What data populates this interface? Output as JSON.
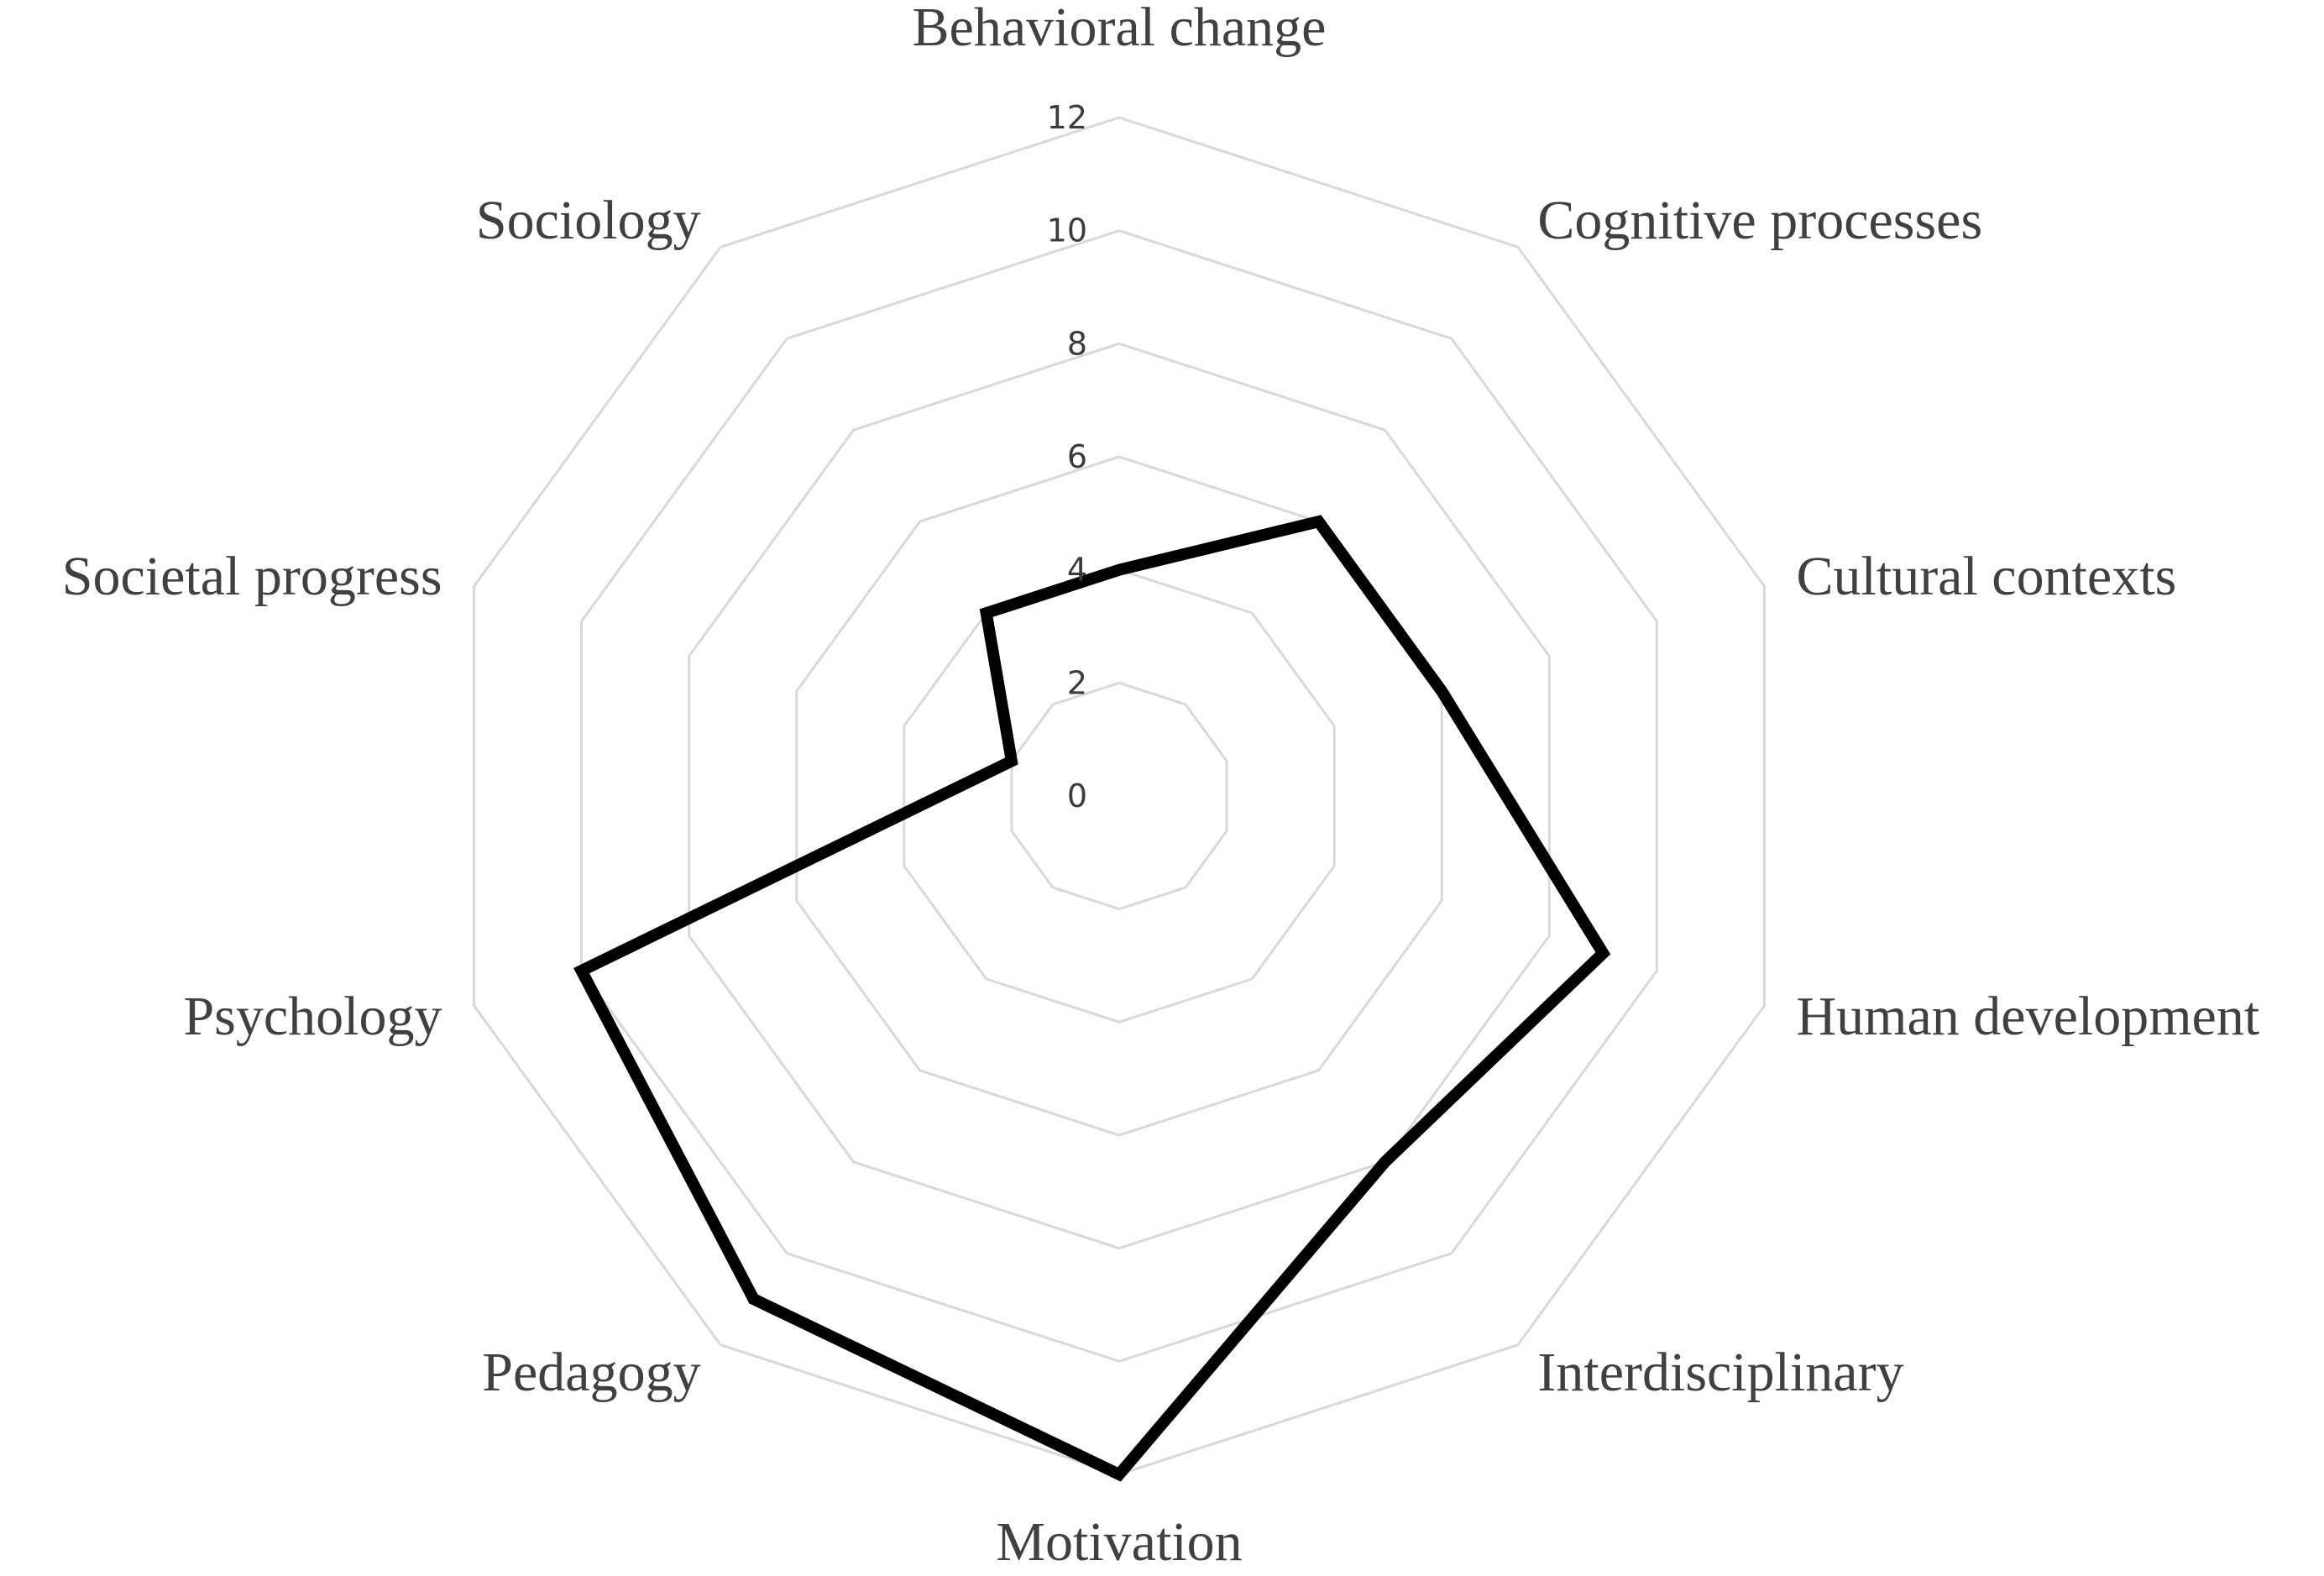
{
  "chart_data": {
    "type": "radar",
    "title": "",
    "categories": [
      "Behavioral change",
      "Cognitive processes",
      "Cultural contexts",
      "Human development",
      "Interdisciplinary",
      "Motivation",
      "Pedagogy",
      "Psychology",
      "Societal progress",
      "Sociology"
    ],
    "series": [
      {
        "values": [
          4,
          6,
          6,
          9,
          8,
          12,
          11,
          10,
          2,
          4
        ],
        "color": "#000000"
      }
    ],
    "radial_axis": {
      "min": 0,
      "max": 12,
      "ticks": [
        "0",
        "2",
        "4",
        "6",
        "8",
        "10",
        "12"
      ]
    },
    "grid": true,
    "grid_color": "#d9d9d9",
    "legend": "none"
  }
}
